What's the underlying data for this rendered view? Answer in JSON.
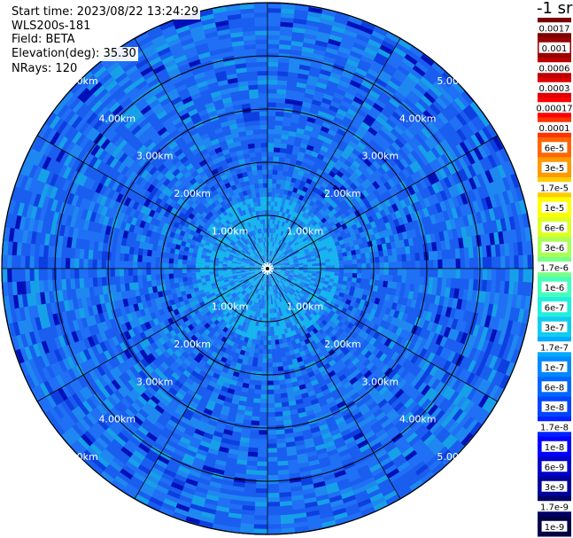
{
  "info": {
    "start_time": "Start time: 2023/08/22 13:24:29",
    "instrument": "WLS200s-181",
    "field": "Field: BETA",
    "elevation": "Elevation(deg): 35.30",
    "nrays": "NRays: 120"
  },
  "chart_data": {
    "type": "heatmap",
    "projection": "polar-ppi",
    "title": "",
    "unit_label": "-1 sr",
    "range_rings_km": [
      1,
      2,
      3,
      4,
      5
    ],
    "range_labels": [
      "1.00km",
      "2.00km",
      "3.00km",
      "4.00km",
      "5.00km"
    ],
    "max_range_km": 5.0,
    "nrays": 120,
    "spokes_deg": [
      0,
      30,
      60,
      90,
      120,
      150,
      180,
      210,
      240,
      270,
      300,
      330
    ],
    "colorbar": [
      {
        "label": "0.0017",
        "color": "#7a0000"
      },
      {
        "label": "0.001",
        "color": "#9a0000"
      },
      {
        "label": "0.0006",
        "color": "#bb0000"
      },
      {
        "label": "0.0003",
        "color": "#de0000"
      },
      {
        "label": "0.00017",
        "color": "#ff0000"
      },
      {
        "label": "0.0001",
        "color": "#ff3300"
      },
      {
        "label": "6e-5",
        "color": "#ff6600"
      },
      {
        "label": "3e-5",
        "color": "#ff9900"
      },
      {
        "label": "1.7e-5",
        "color": "#ffcc00"
      },
      {
        "label": "1e-5",
        "color": "#ffff00"
      },
      {
        "label": "6e-6",
        "color": "#ddff22"
      },
      {
        "label": "3e-6",
        "color": "#aaff55"
      },
      {
        "label": "1.7e-6",
        "color": "#77ff88"
      },
      {
        "label": "1e-6",
        "color": "#44ffbb"
      },
      {
        "label": "6e-7",
        "color": "#22eedd"
      },
      {
        "label": "3e-7",
        "color": "#11ccee"
      },
      {
        "label": "1.7e-7",
        "color": "#00aaff"
      },
      {
        "label": "1e-7",
        "color": "#0088ff"
      },
      {
        "label": "6e-8",
        "color": "#0066ff"
      },
      {
        "label": "3e-8",
        "color": "#0044ff"
      },
      {
        "label": "1.7e-8",
        "color": "#0022ff"
      },
      {
        "label": "1e-8",
        "color": "#0000ff"
      },
      {
        "label": "6e-9",
        "color": "#0000cc"
      },
      {
        "label": "3e-9",
        "color": "#000099"
      },
      {
        "label": "1.7e-9",
        "color": "#000066"
      },
      {
        "label": "1e-9",
        "color": "#000044"
      }
    ]
  }
}
